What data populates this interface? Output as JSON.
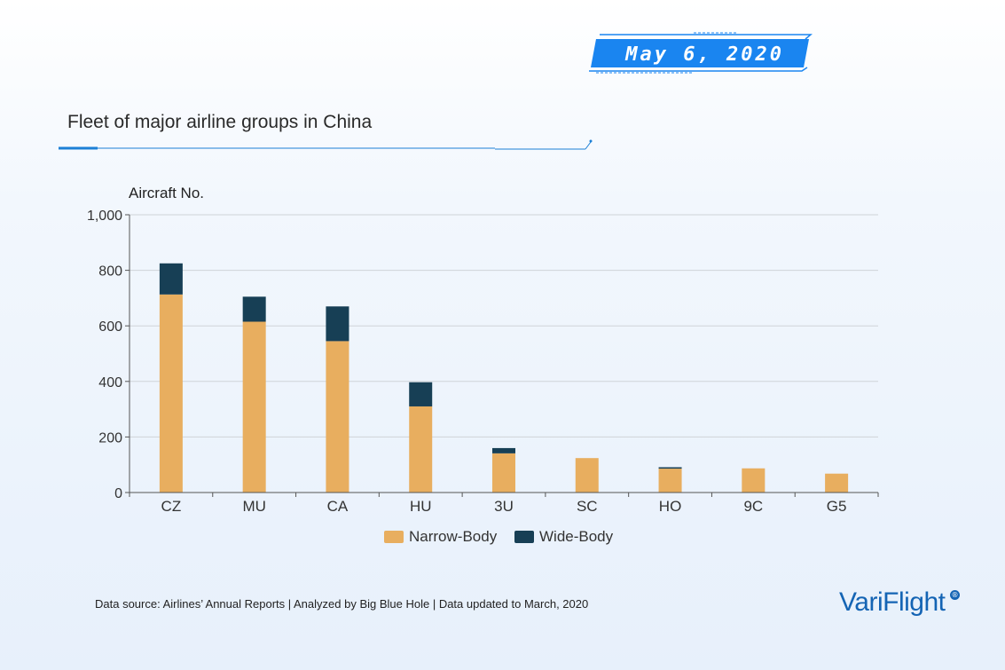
{
  "header": {
    "date": "May 6, 2020",
    "title": "Fleet of major airline groups in China"
  },
  "footer": {
    "source": "Data source: Airlines’ Annual Reports | Analyzed by Big Blue Hole | Data updated to March, 2020",
    "logo": "VariFlight",
    "logo_mark": "®"
  },
  "colors": {
    "narrow": "#e8ae5f",
    "wide": "#173f55",
    "accent": "#1a85f0",
    "line": "#1c7fd6"
  },
  "chart_data": {
    "type": "bar",
    "stacked": true,
    "title": "Fleet of major airline groups in China",
    "ylabel": "Aircraft No.",
    "xlabel": "",
    "ylim": [
      0,
      1000
    ],
    "yticks": [
      "0",
      "200",
      "400",
      "600",
      "800",
      "1,000"
    ],
    "categories": [
      "CZ",
      "MU",
      "CA",
      "HU",
      "3U",
      "SC",
      "HO",
      "9C",
      "G5"
    ],
    "series": [
      {
        "name": "Narrow-Body",
        "values": [
          713,
          615,
          545,
          310,
          141,
          124,
          86,
          87,
          68
        ],
        "color": "#e8ae5f"
      },
      {
        "name": "Wide-Body",
        "values": [
          112,
          90,
          125,
          87,
          19,
          0,
          5,
          0,
          0
        ],
        "color": "#173f55"
      }
    ],
    "grid": true,
    "legend": "bottom-center"
  }
}
